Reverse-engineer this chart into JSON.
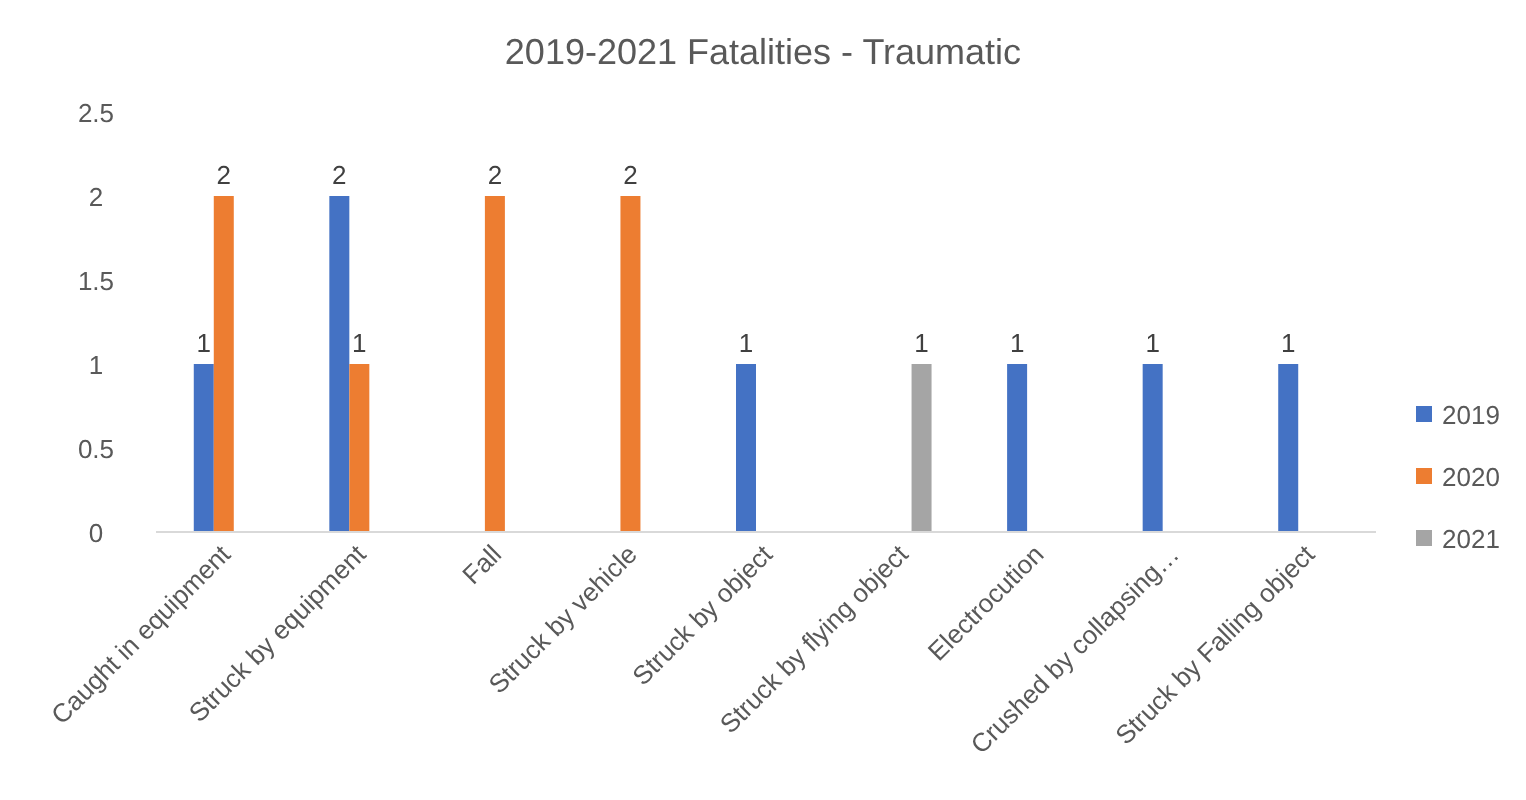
{
  "chart_data": {
    "type": "bar",
    "title": "2019-2021 Fatalities - Traumatic",
    "categories": [
      "Caught in equipment",
      "Struck by equipment",
      "Fall",
      "Struck by vehicle",
      "Struck by object",
      "Struck by flying object",
      "Electrocution",
      "Crushed by collapsing…",
      "Struck by Falling object"
    ],
    "series": [
      {
        "name": "2019",
        "color": "#4472c4",
        "values": [
          1,
          2,
          null,
          null,
          1,
          null,
          1,
          1,
          1
        ]
      },
      {
        "name": "2020",
        "color": "#ed7d31",
        "values": [
          2,
          1,
          2,
          2,
          null,
          null,
          null,
          null,
          null
        ]
      },
      {
        "name": "2021",
        "color": "#a5a5a5",
        "values": [
          null,
          null,
          null,
          null,
          null,
          1,
          null,
          null,
          null
        ]
      }
    ],
    "ylim": [
      0,
      2.5
    ],
    "yticks": [
      0,
      0.5,
      1,
      1.5,
      2,
      2.5
    ],
    "grid": false,
    "legend": "right",
    "data_labels": true
  }
}
